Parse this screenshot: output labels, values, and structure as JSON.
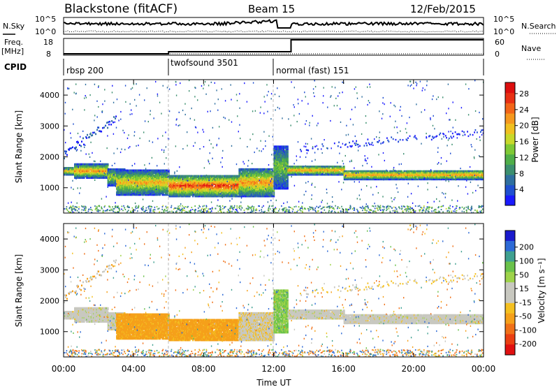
{
  "header": {
    "station": "Blackstone (fitACF)",
    "beam": "Beam 15",
    "date": "12/Feb/2015"
  },
  "sky_panel": {
    "left_label": "N.Sky",
    "right_label": "N.Search",
    "left_ticks": [
      "10^5",
      "10^0"
    ],
    "right_ticks": [
      "10^5",
      "10^0"
    ]
  },
  "freq_panel": {
    "left_label_1": "Freq.",
    "left_label_2": "[MHz]",
    "right_label": "Nave",
    "left_ticks": [
      "18",
      "8"
    ],
    "right_ticks": [
      "60",
      "0"
    ]
  },
  "cpid": {
    "label": "CPID",
    "programs": [
      {
        "name": "rbsp 200",
        "start_hour": 0,
        "end_hour": 6
      },
      {
        "name": "twofsound 3501",
        "start_hour": 6,
        "end_hour": 12
      },
      {
        "name": "normal (fast) 151",
        "start_hour": 12,
        "end_hour": 24
      }
    ]
  },
  "x_axis": {
    "title": "Time UT",
    "ticks": [
      "00:00",
      "04:00",
      "08:00",
      "12:00",
      "16:00",
      "20:00",
      "00:00"
    ]
  },
  "power_panel": {
    "ylabel": "Slant Range [km]",
    "yticks": [
      "1000",
      "2000",
      "3000",
      "4000"
    ],
    "colorbar_label": "Power [dB]",
    "colorbar_ticks": [
      "4",
      "8",
      "12",
      "16",
      "20",
      "24",
      "28"
    ],
    "colors": [
      "#1a1aff",
      "#2050d0",
      "#2f6f9f",
      "#3c8f6f",
      "#4fae49",
      "#7fc935",
      "#c8d82a",
      "#f0c020",
      "#f5981e",
      "#f26518",
      "#e83014",
      "#dd0f0f"
    ]
  },
  "velocity_panel": {
    "ylabel": "Slant Range [km]",
    "yticks": [
      "1000",
      "2000",
      "3000",
      "4000"
    ],
    "colorbar_label": "Velocity [m s⁻¹]",
    "colorbar_ticks": [
      "200",
      "100",
      "50",
      "15",
      "-15",
      "-50",
      "-100",
      "-200"
    ],
    "colors": [
      "#1a1acd",
      "#2d6ad6",
      "#3fa090",
      "#6ac24b",
      "#9ed34a",
      "#c8c8c0",
      "#c8c8c0",
      "#f4c020",
      "#f5a01a",
      "#f07018",
      "#ea3f12",
      "#e01010"
    ]
  },
  "chart_data": {
    "type": "heatmap",
    "x_range_hours": [
      0,
      24
    ],
    "y_range_km": [
      180,
      4500
    ],
    "backscatter_bands": [
      {
        "start_hour": 0.0,
        "end_hour": 0.6,
        "range_km": [
          1450,
          1700
        ],
        "power_db": 22,
        "velocity": -5
      },
      {
        "start_hour": 0.6,
        "end_hour": 2.5,
        "range_km": [
          1350,
          1800
        ],
        "power_db": 24,
        "velocity": -5
      },
      {
        "start_hour": 2.5,
        "end_hour": 3.5,
        "range_km": [
          1100,
          1650
        ],
        "power_db": 18,
        "velocity": -5
      },
      {
        "start_hour": 3.0,
        "end_hour": 6.0,
        "range_km": [
          800,
          1600
        ],
        "power_db": 22,
        "velocity": -40
      },
      {
        "start_hour": 6.0,
        "end_hour": 10.0,
        "range_km": [
          750,
          1450
        ],
        "power_db": 28,
        "velocity": -40
      },
      {
        "start_hour": 10.0,
        "end_hour": 12.0,
        "range_km": [
          750,
          1650
        ],
        "power_db": 24,
        "velocity": -10
      },
      {
        "start_hour": 12.0,
        "end_hour": 12.8,
        "range_km": [
          1000,
          2400
        ],
        "power_db": 16,
        "velocity": 15
      },
      {
        "start_hour": 12.8,
        "end_hour": 16.0,
        "range_km": [
          1450,
          1750
        ],
        "power_db": 24,
        "velocity": -5
      },
      {
        "start_hour": 16.0,
        "end_hour": 24.0,
        "range_km": [
          1300,
          1600
        ],
        "power_db": 24,
        "velocity": -5
      }
    ],
    "cpid_switch_hours": [
      6,
      12
    ]
  }
}
